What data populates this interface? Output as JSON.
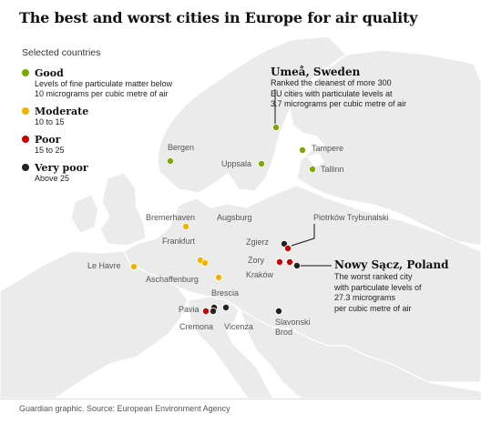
{
  "title": "The best and worst cities in Europe for air quality",
  "legend": {
    "heading": "Selected countries",
    "items": [
      {
        "label": "Good",
        "desc": "Levels of fine particulate matter below\n10 micrograms per cubic metre of air",
        "color": "#7ea800"
      },
      {
        "label": "Moderate",
        "desc": "10 to 15",
        "color": "#f2b300"
      },
      {
        "label": "Poor",
        "desc": "15 to 25",
        "color": "#c70000"
      },
      {
        "label": "Very poor",
        "desc": "Above 25",
        "color": "#222222"
      }
    ]
  },
  "cities": [
    {
      "name": "Umeå",
      "category": "Good"
    },
    {
      "name": "Bergen",
      "category": "Good"
    },
    {
      "name": "Uppsala",
      "category": "Good"
    },
    {
      "name": "Tampere",
      "category": "Good"
    },
    {
      "name": "Tallinn",
      "category": "Good"
    },
    {
      "name": "Bremerhaven",
      "category": "Moderate"
    },
    {
      "name": "Augsburg",
      "category": "Moderate"
    },
    {
      "name": "Frankfurt",
      "category": "Moderate"
    },
    {
      "name": "Aschaffenburg",
      "category": "Moderate"
    },
    {
      "name": "Le Havre",
      "category": "Moderate"
    },
    {
      "name": "Brescia",
      "category": "Very poor"
    },
    {
      "name": "Pavia",
      "category": "Poor"
    },
    {
      "name": "Cremona",
      "category": "Very poor"
    },
    {
      "name": "Vicenza",
      "category": "Very poor"
    },
    {
      "name": "Slavonski Brod",
      "category": "Very poor"
    },
    {
      "name": "Piotrków Trybunalski",
      "category": "Very poor"
    },
    {
      "name": "Zgierz",
      "category": "Poor"
    },
    {
      "name": "Żory",
      "category": "Poor"
    },
    {
      "name": "Kraków",
      "category": "Poor"
    },
    {
      "name": "Nowy Sącz",
      "category": "Very poor"
    }
  ],
  "annotations": {
    "best": {
      "title": "Umeå, Sweden",
      "text": "Ranked the cleanest of more 300\nEU cities with particulate levels at\n3.7 micrograms per cubic metre of air"
    },
    "worst": {
      "title": "Nowy Sącz, Poland",
      "text": "The worst ranked city\nwith particulate levels of\n27.3 micrograms\nper cubic metre of air"
    }
  },
  "source": "Guardian graphic. Source: European Environment Agency",
  "map_colors": {
    "land": "#ebebeb",
    "sea": "#ffffff",
    "border": "#ffffff"
  }
}
